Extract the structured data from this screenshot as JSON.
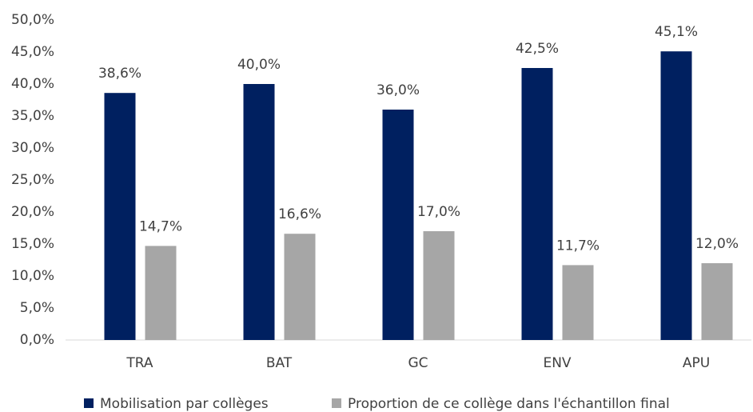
{
  "chart_data": {
    "type": "bar",
    "categories": [
      "TRA",
      "BAT",
      "GC",
      "ENV",
      "APU"
    ],
    "series": [
      {
        "name": "Mobilisation par collèges",
        "color": "#002060",
        "values": [
          38.6,
          40.0,
          36.0,
          42.5,
          45.1
        ],
        "value_labels": [
          "38,6%",
          "40,0%",
          "36,0%",
          "42,5%",
          "45,1%"
        ]
      },
      {
        "name": "Proportion de ce collège dans l'échantillon final",
        "color": "#a6a6a6",
        "values": [
          14.7,
          16.6,
          17.0,
          11.7,
          12.0
        ],
        "value_labels": [
          "14,7%",
          "16,6%",
          "17,0%",
          "11,7%",
          "12,0%"
        ]
      }
    ],
    "ylim": [
      0,
      50
    ],
    "yticks": [
      {
        "value": 0,
        "label": "0,0%"
      },
      {
        "value": 5,
        "label": "5,0%"
      },
      {
        "value": 10,
        "label": "10,0%"
      },
      {
        "value": 15,
        "label": "15,0%"
      },
      {
        "value": 20,
        "label": "20,0%"
      },
      {
        "value": 25,
        "label": "25,0%"
      },
      {
        "value": 30,
        "label": "30,0%"
      },
      {
        "value": 35,
        "label": "35,0%"
      },
      {
        "value": 40,
        "label": "40,0%"
      },
      {
        "value": 45,
        "label": "45,0%"
      },
      {
        "value": 50,
        "label": "50,0%"
      }
    ],
    "grid": false
  }
}
